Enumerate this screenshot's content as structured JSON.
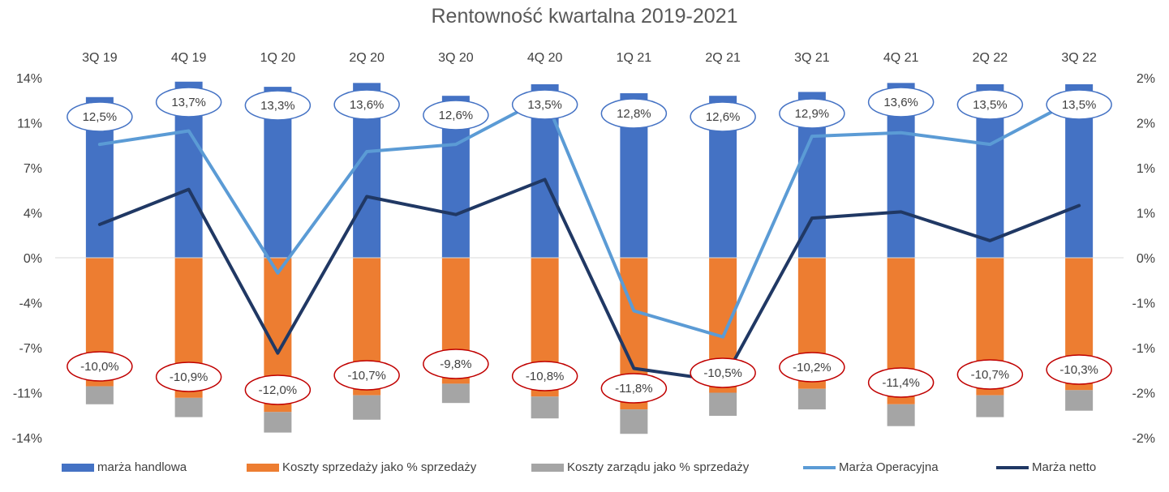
{
  "chart_data": {
    "type": "bar",
    "title": "Rentowność kwartalna 2019-2021",
    "categories": [
      "3Q 19",
      "4Q 19",
      "1Q 20",
      "2Q 20",
      "3Q 20",
      "4Q 20",
      "1Q 21",
      "2Q 21",
      "3Q 21",
      "4Q 21",
      "2Q 22",
      "3Q 22"
    ],
    "left_axis": {
      "range": [
        -14,
        14
      ],
      "ticks": [
        "14%",
        "11%",
        "7%",
        "4%",
        "0%",
        "-4%",
        "-7%",
        "-11%",
        "-14%"
      ]
    },
    "right_axis": {
      "range": [
        -2,
        2
      ],
      "ticks": [
        "2%",
        "2%",
        "1%",
        "1%",
        "0%",
        "-1%",
        "-1%",
        "-2%",
        "-2%"
      ]
    },
    "grid": false,
    "legend_position": "bottom",
    "series": [
      {
        "name": "marża handlowa",
        "kind": "bar",
        "axis": "left",
        "color": "#4472C4",
        "values": [
          12.5,
          13.7,
          13.3,
          13.6,
          12.6,
          13.5,
          12.8,
          12.6,
          12.9,
          13.6,
          13.5,
          13.5
        ],
        "labels": [
          "12,5%",
          "13,7%",
          "13,3%",
          "13,6%",
          "12,6%",
          "13,5%",
          "12,8%",
          "12,6%",
          "12,9%",
          "13,6%",
          "13,5%",
          "13,5%"
        ]
      },
      {
        "name": "Koszty sprzedaży jako % sprzedaży",
        "kind": "bar",
        "axis": "left",
        "color": "#ED7D31",
        "values": [
          -10.0,
          -10.9,
          -12.0,
          -10.7,
          -9.8,
          -10.8,
          -11.8,
          -10.5,
          -10.2,
          -11.4,
          -10.7,
          -10.3
        ],
        "labels": [
          "-10,0%",
          "-10,9%",
          "-12,0%",
          "-10,7%",
          "-9,8%",
          "-10,8%",
          "-11,8%",
          "-10,5%",
          "-10,2%",
          "-11,4%",
          "-10,7%",
          "-10,3%"
        ]
      },
      {
        "name": "Koszty zarządu jako % sprzedaży",
        "kind": "bar",
        "axis": "left",
        "color": "#A5A5A5",
        "values": [
          -1.4,
          -1.5,
          -1.6,
          -1.9,
          -1.5,
          -1.7,
          -1.9,
          -1.8,
          -1.6,
          -1.7,
          -1.7,
          -1.6
        ]
      },
      {
        "name": "Marża Operacyjna",
        "kind": "line",
        "axis": "right",
        "color": "#5B9BD5",
        "values": [
          1.26,
          1.41,
          -0.17,
          1.18,
          1.26,
          1.78,
          -0.59,
          -0.88,
          1.35,
          1.39,
          1.26,
          1.78
        ]
      },
      {
        "name": "Marża netto",
        "kind": "line",
        "axis": "right",
        "color": "#203864",
        "values": [
          0.37,
          0.76,
          -1.06,
          0.68,
          0.48,
          0.87,
          -1.23,
          -1.37,
          0.44,
          0.51,
          0.19,
          0.58
        ]
      }
    ]
  }
}
